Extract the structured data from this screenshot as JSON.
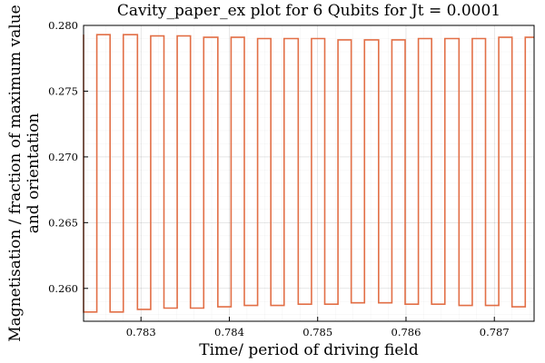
{
  "chart_data": {
    "type": "line",
    "title": "Cavity_paper_ex plot for 6 Qubits for Jt = 0.0001",
    "xlabel": "Time/ period of driving field",
    "ylabel_lines": [
      "Magnetisation / fraction of maximum value",
      "and orientation"
    ],
    "xlim": [
      0.78235,
      0.78745
    ],
    "ylim": [
      0.2575,
      0.28
    ],
    "x_ticks": [
      0.783,
      0.784,
      0.785,
      0.786,
      0.787
    ],
    "x_tick_labels": [
      "0.783",
      "0.784",
      "0.785",
      "0.786",
      "0.787"
    ],
    "y_ticks": [
      0.26,
      0.265,
      0.27,
      0.275,
      0.28
    ],
    "y_tick_labels": [
      "0.260",
      "0.265",
      "0.270",
      "0.275",
      "0.280"
    ],
    "grid": true,
    "legend": "none",
    "line_color": "#e26f46",
    "series": [
      {
        "name": "",
        "x": [
          0.78235,
          0.78235,
          0.78235,
          0.7825,
          0.7825,
          0.78265,
          0.78265,
          0.7828,
          0.7828,
          0.78296,
          0.78296,
          0.78311,
          0.78311,
          0.78326,
          0.78326,
          0.78341,
          0.78341,
          0.78356,
          0.78356,
          0.78371,
          0.78371,
          0.78387,
          0.78387,
          0.78402,
          0.78402,
          0.78417,
          0.78417,
          0.78432,
          0.78432,
          0.78447,
          0.78447,
          0.78462,
          0.78462,
          0.78478,
          0.78478,
          0.78493,
          0.78493,
          0.78508,
          0.78508,
          0.78523,
          0.78523,
          0.78538,
          0.78538,
          0.78553,
          0.78553,
          0.78569,
          0.78569,
          0.78584,
          0.78584,
          0.78599,
          0.78599,
          0.78614,
          0.78614,
          0.78629,
          0.78629,
          0.78644,
          0.78644,
          0.7866,
          0.7866,
          0.78675,
          0.78675,
          0.7869,
          0.7869,
          0.78705,
          0.78705,
          0.7872,
          0.7872,
          0.78735,
          0.78735,
          0.78745
        ],
        "y": [
          0.2793,
          0.2582,
          0.2582,
          0.2582,
          0.2793,
          0.2793,
          0.2582,
          0.2582,
          0.2793,
          0.2793,
          0.2584,
          0.2584,
          0.2792,
          0.2792,
          0.2585,
          0.2585,
          0.2792,
          0.2792,
          0.2585,
          0.2585,
          0.2791,
          0.2791,
          0.2586,
          0.2586,
          0.2791,
          0.2791,
          0.2587,
          0.2587,
          0.279,
          0.279,
          0.2587,
          0.2587,
          0.279,
          0.279,
          0.2588,
          0.2588,
          0.279,
          0.279,
          0.2588,
          0.2588,
          0.2789,
          0.2789,
          0.2589,
          0.2589,
          0.2789,
          0.2789,
          0.2589,
          0.2589,
          0.2789,
          0.2789,
          0.2588,
          0.2588,
          0.279,
          0.279,
          0.2588,
          0.2588,
          0.279,
          0.279,
          0.2587,
          0.2587,
          0.279,
          0.279,
          0.2587,
          0.2587,
          0.2791,
          0.2791,
          0.2586,
          0.2586,
          0.2791,
          0.2791
        ]
      }
    ]
  }
}
